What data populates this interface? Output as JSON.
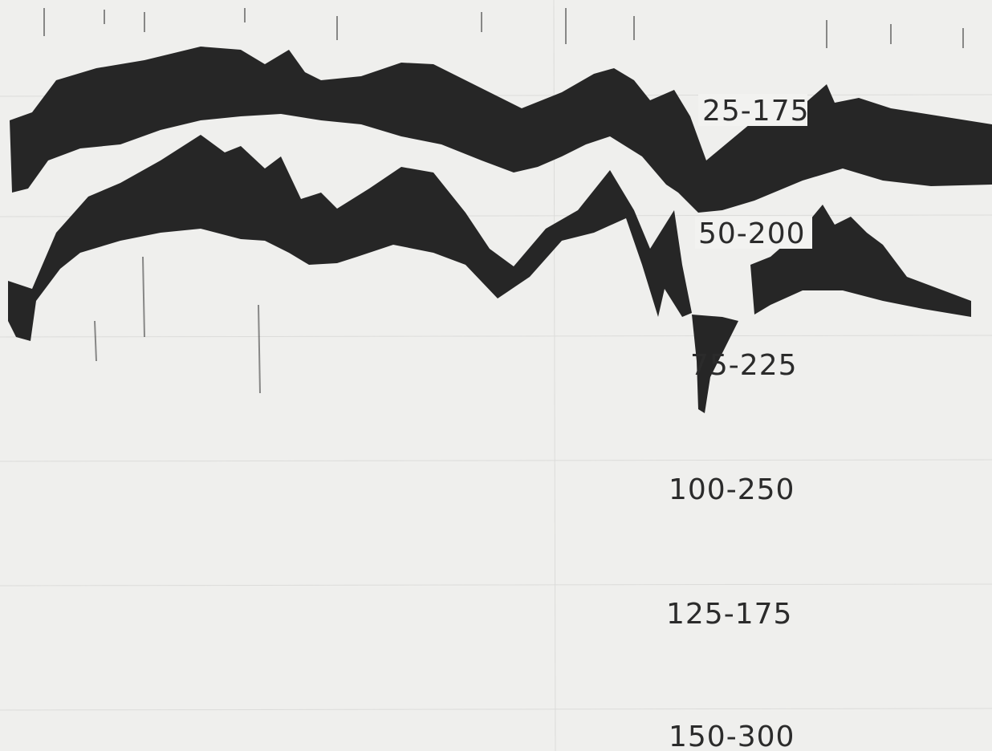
{
  "labels": [
    "25-175",
    "50-200",
    "75-225",
    "100-250",
    "125-175",
    "150-300"
  ]
}
